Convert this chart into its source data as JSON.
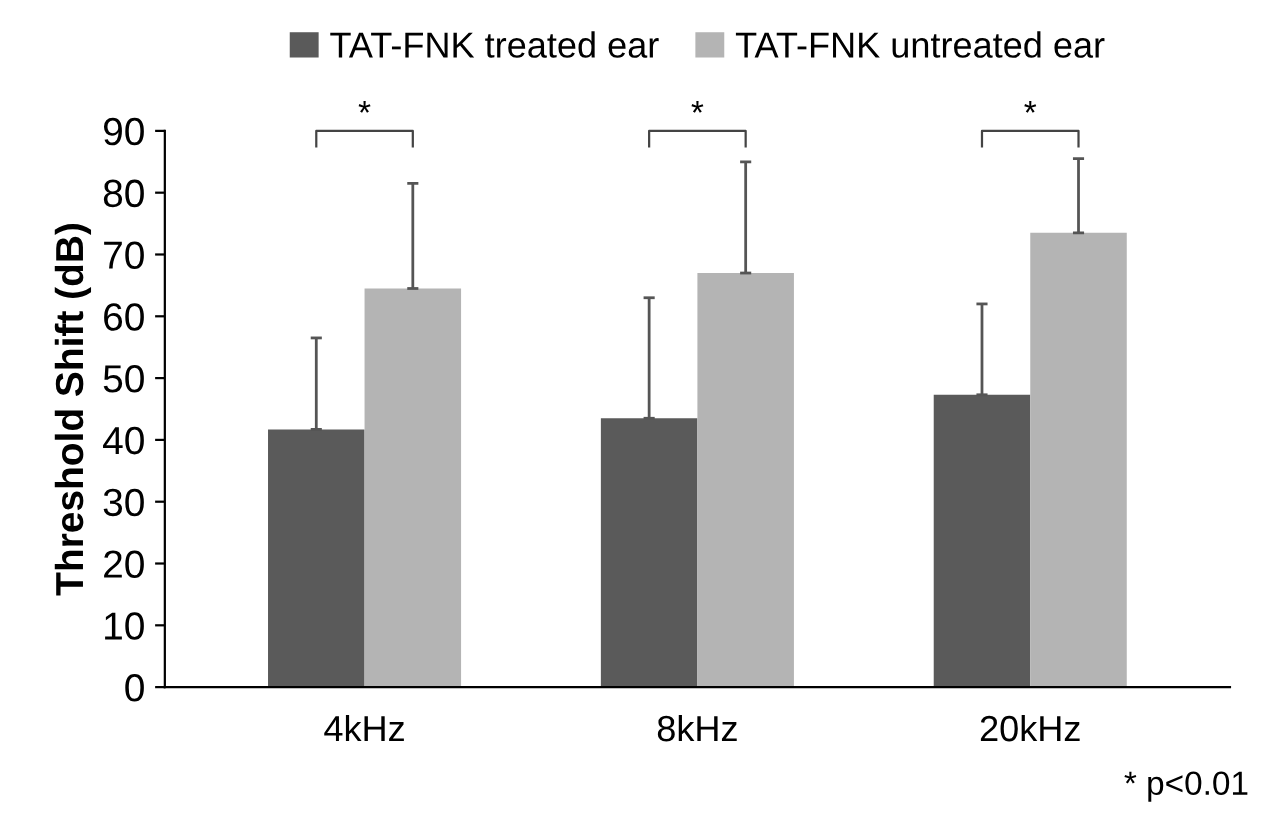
{
  "chart_data": {
    "type": "bar",
    "ylabel": "Threshold Shift (dB)",
    "categories": [
      "4kHz",
      "8kHz",
      "20kHz"
    ],
    "series": [
      {
        "name": "TAT-FNK treated ear",
        "color": "#5a5a5a",
        "values": [
          41.7,
          43.5,
          47.3
        ],
        "errors": [
          [
            41.7,
            56.5
          ],
          [
            43.5,
            63
          ],
          [
            47.3,
            62
          ]
        ]
      },
      {
        "name": "TAT-FNK untreated ear",
        "color": "#b4b4b4",
        "values": [
          64.5,
          67,
          73.5
        ],
        "errors": [
          [
            64.5,
            81.5
          ],
          [
            67,
            85
          ],
          [
            73.5,
            85.5
          ]
        ]
      }
    ],
    "ylim": [
      0,
      90
    ],
    "yticks": [
      0,
      10,
      20,
      30,
      40,
      50,
      60,
      70,
      80,
      90
    ],
    "grid": false,
    "legend": "top",
    "annotations": [
      "*",
      "*",
      "*",
      "* p<0.01"
    ]
  }
}
